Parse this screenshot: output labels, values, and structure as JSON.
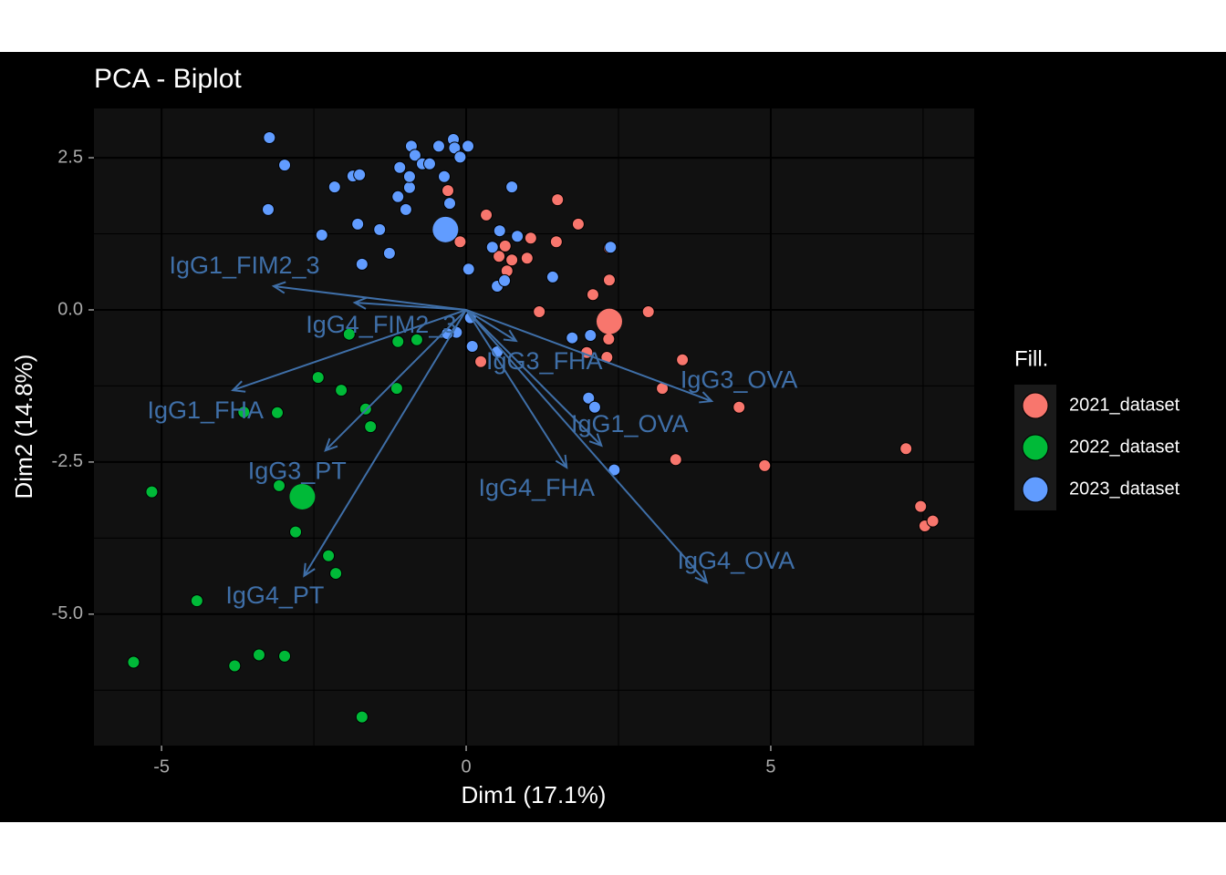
{
  "chart_data": {
    "type": "scatter",
    "title": "PCA - Biplot",
    "x_label": "Dim1 (17.1%)",
    "y_label": "Dim2 (14.8%)",
    "legend_title": "Fill.",
    "legend": "right",
    "grid": true,
    "xlim": [
      -6.11,
      8.34
    ],
    "ylim": [
      -7.16,
      3.31
    ],
    "xticks": [
      -5,
      0,
      5
    ],
    "yticks": [
      {
        "value": 2.5,
        "label": "2.5"
      },
      {
        "value": 0,
        "label": "0.0"
      },
      {
        "value": -2.5,
        "label": "-2.5"
      },
      {
        "value": -5,
        "label": "-5.0"
      }
    ],
    "xminor": [
      -2.5,
      2.5,
      7.5
    ],
    "yminor": [
      1.25,
      -1.25,
      -3.75,
      -6.25
    ],
    "series": [
      {
        "name": "2021_dataset",
        "color": "#F8766D",
        "x": [
          -0.3,
          0.33,
          0.64,
          0.54,
          0.75,
          0.67,
          1.0,
          1.06,
          1.48,
          1.5,
          1.84,
          2.35,
          2.35,
          2.08,
          1.2,
          2.99,
          2.34,
          2.31,
          1.98,
          3.55,
          3.22,
          4.48,
          3.44,
          4.9,
          7.22,
          7.46,
          7.53,
          7.66,
          0.24,
          -0.1
        ],
        "values": [
          1.96,
          1.56,
          1.05,
          0.88,
          0.82,
          0.64,
          0.85,
          1.18,
          1.12,
          1.81,
          1.41,
          1.02,
          0.49,
          0.25,
          -0.03,
          -0.03,
          -0.48,
          -0.78,
          -0.7,
          -0.82,
          -1.29,
          -1.6,
          -2.46,
          -2.56,
          -2.28,
          -3.23,
          -3.55,
          -3.47,
          -0.85,
          1.12
        ],
        "centroid": [
          2.35,
          -0.19
        ]
      },
      {
        "name": "2022_dataset",
        "color": "#00BA38",
        "x": [
          -1.92,
          -1.12,
          -0.81,
          -2.43,
          -2.05,
          -1.14,
          -3.65,
          -3.1,
          -1.65,
          -1.57,
          -5.16,
          -3.07,
          -2.8,
          -2.26,
          -2.14,
          -4.42,
          -5.46,
          -3.8,
          -3.4,
          -2.98,
          -1.71
        ],
        "values": [
          -0.4,
          -0.52,
          -0.49,
          -1.11,
          -1.32,
          -1.29,
          -1.68,
          -1.69,
          -1.63,
          -1.92,
          -2.99,
          -2.89,
          -3.65,
          -4.04,
          -4.33,
          -4.78,
          -5.79,
          -5.85,
          -5.67,
          -5.69,
          -6.69
        ],
        "centroid": [
          -2.69,
          -3.07
        ]
      },
      {
        "name": "2023_dataset",
        "color": "#619CFF",
        "x": [
          -3.23,
          -2.98,
          -3.25,
          -2.37,
          -2.16,
          -1.86,
          -1.75,
          -1.78,
          -1.71,
          -1.42,
          -1.26,
          -1.12,
          -1.09,
          -0.99,
          -0.93,
          -0.93,
          -0.9,
          -0.84,
          -0.72,
          -0.6,
          -0.45,
          -0.36,
          -0.27,
          -0.21,
          -0.19,
          -0.1,
          0.03,
          0.04,
          0.43,
          0.55,
          0.84,
          0.75,
          0.51,
          0.63,
          1.42,
          2.37,
          1.74,
          2.04,
          2.01,
          2.11,
          2.43,
          0.1,
          -0.16,
          0.51,
          -0.31,
          0.07
        ],
        "values": [
          2.83,
          2.38,
          1.65,
          1.23,
          2.02,
          2.2,
          2.22,
          1.41,
          0.75,
          1.32,
          0.93,
          1.86,
          2.34,
          1.65,
          2.01,
          2.19,
          2.69,
          2.54,
          2.4,
          2.4,
          2.69,
          2.19,
          1.75,
          2.8,
          2.66,
          2.51,
          2.69,
          0.67,
          1.03,
          1.3,
          1.21,
          2.02,
          0.39,
          0.48,
          0.54,
          1.03,
          -0.46,
          -0.42,
          -1.45,
          -1.6,
          -2.63,
          -0.6,
          -0.37,
          -0.69,
          -0.39,
          -0.13
        ],
        "centroid": [
          -0.34,
          1.32
        ]
      }
    ],
    "loadings_color": "#3F6FA8",
    "loadings": [
      {
        "name": "IgG1_FIM2_3",
        "x": -3.16,
        "y": 0.39
      },
      {
        "name": "IgG4_FIM2_3",
        "x": -1.83,
        "y": 0.12
      },
      {
        "name": "IgG1_FHA",
        "x": -3.83,
        "y": -1.32
      },
      {
        "name": "IgG3_PT",
        "x": -2.31,
        "y": -2.31
      },
      {
        "name": "IgG4_PT",
        "x": -2.66,
        "y": -4.37
      },
      {
        "name": "IgG3_FHA",
        "x": 0.82,
        "y": -0.51
      },
      {
        "name": "IgG3_OVA",
        "x": 4.03,
        "y": -1.5
      },
      {
        "name": "IgG1_OVA",
        "x": 2.22,
        "y": -2.23
      },
      {
        "name": "IgG4_FHA",
        "x": 1.65,
        "y": -2.59
      },
      {
        "name": "IgG4_OVA",
        "x": 3.95,
        "y": -4.48
      }
    ]
  }
}
